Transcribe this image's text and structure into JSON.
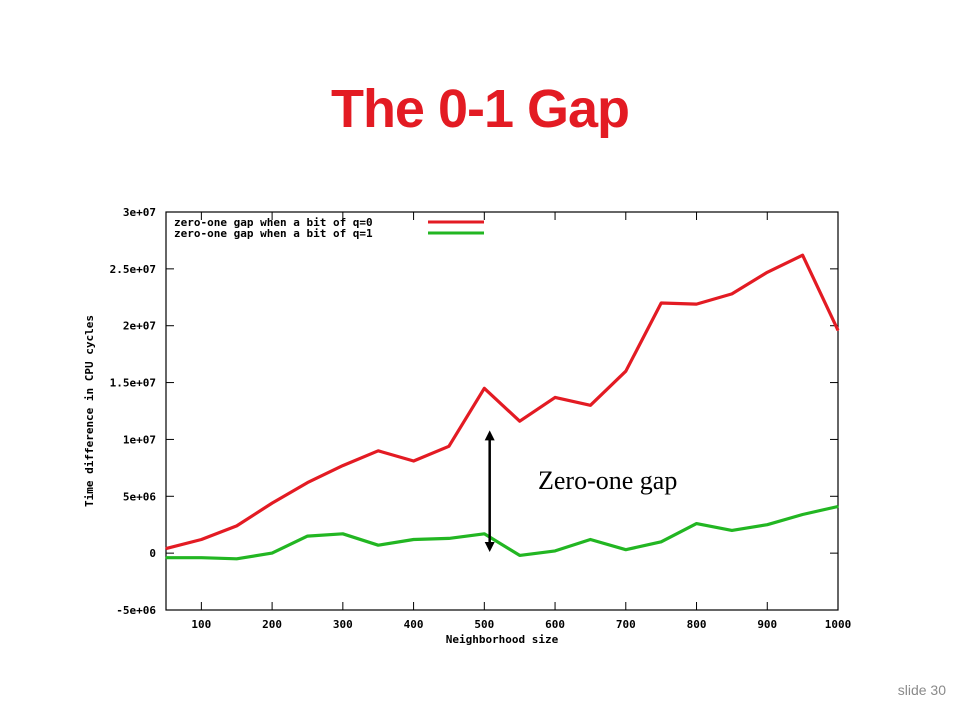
{
  "slide": {
    "title": "The 0-1 Gap",
    "slide_number": "slide 30",
    "annotation": "Zero-one gap"
  },
  "chart_data": {
    "type": "line",
    "title": "",
    "xlabel": "Neighborhood size",
    "ylabel": "Time difference in CPU cycles",
    "xlim": [
      50,
      1000
    ],
    "ylim": [
      -5000000,
      30000000
    ],
    "x_ticks": [
      100,
      200,
      300,
      400,
      500,
      600,
      700,
      800,
      900,
      1000
    ],
    "y_ticks": [
      -5000000,
      0,
      5000000,
      10000000,
      15000000,
      20000000,
      25000000,
      30000000
    ],
    "y_tick_labels": [
      "-5e+06",
      "0",
      "5e+06",
      "1e+07",
      "1.5e+07",
      "2e+07",
      "2.5e+07",
      "3e+07"
    ],
    "legend_position": "top-left",
    "x": [
      50,
      100,
      150,
      200,
      250,
      300,
      350,
      400,
      450,
      500,
      550,
      600,
      650,
      700,
      750,
      800,
      850,
      900,
      950,
      1000
    ],
    "series": [
      {
        "name": "zero-one gap when a bit of q=0",
        "color": "#e31b23",
        "values": [
          400000,
          1200000,
          2400000,
          4400000,
          6200000,
          7700000,
          9000000,
          8100000,
          9400000,
          14500000,
          11600000,
          13700000,
          13000000,
          16000000,
          22000000,
          21900000,
          22800000,
          24700000,
          26200000,
          19600000
        ]
      },
      {
        "name": "zero-one gap when a bit of q=1",
        "color": "#22b622",
        "values": [
          -400000,
          -400000,
          -500000,
          0,
          1500000,
          1700000,
          700000,
          1200000,
          1300000,
          1700000,
          -200000,
          200000,
          1200000,
          300000,
          1000000,
          2600000,
          2000000,
          2500000,
          3400000,
          4100000
        ]
      }
    ],
    "gap_arrow": {
      "x": 550,
      "y_top": 10800000,
      "y_bottom": 100000
    }
  }
}
